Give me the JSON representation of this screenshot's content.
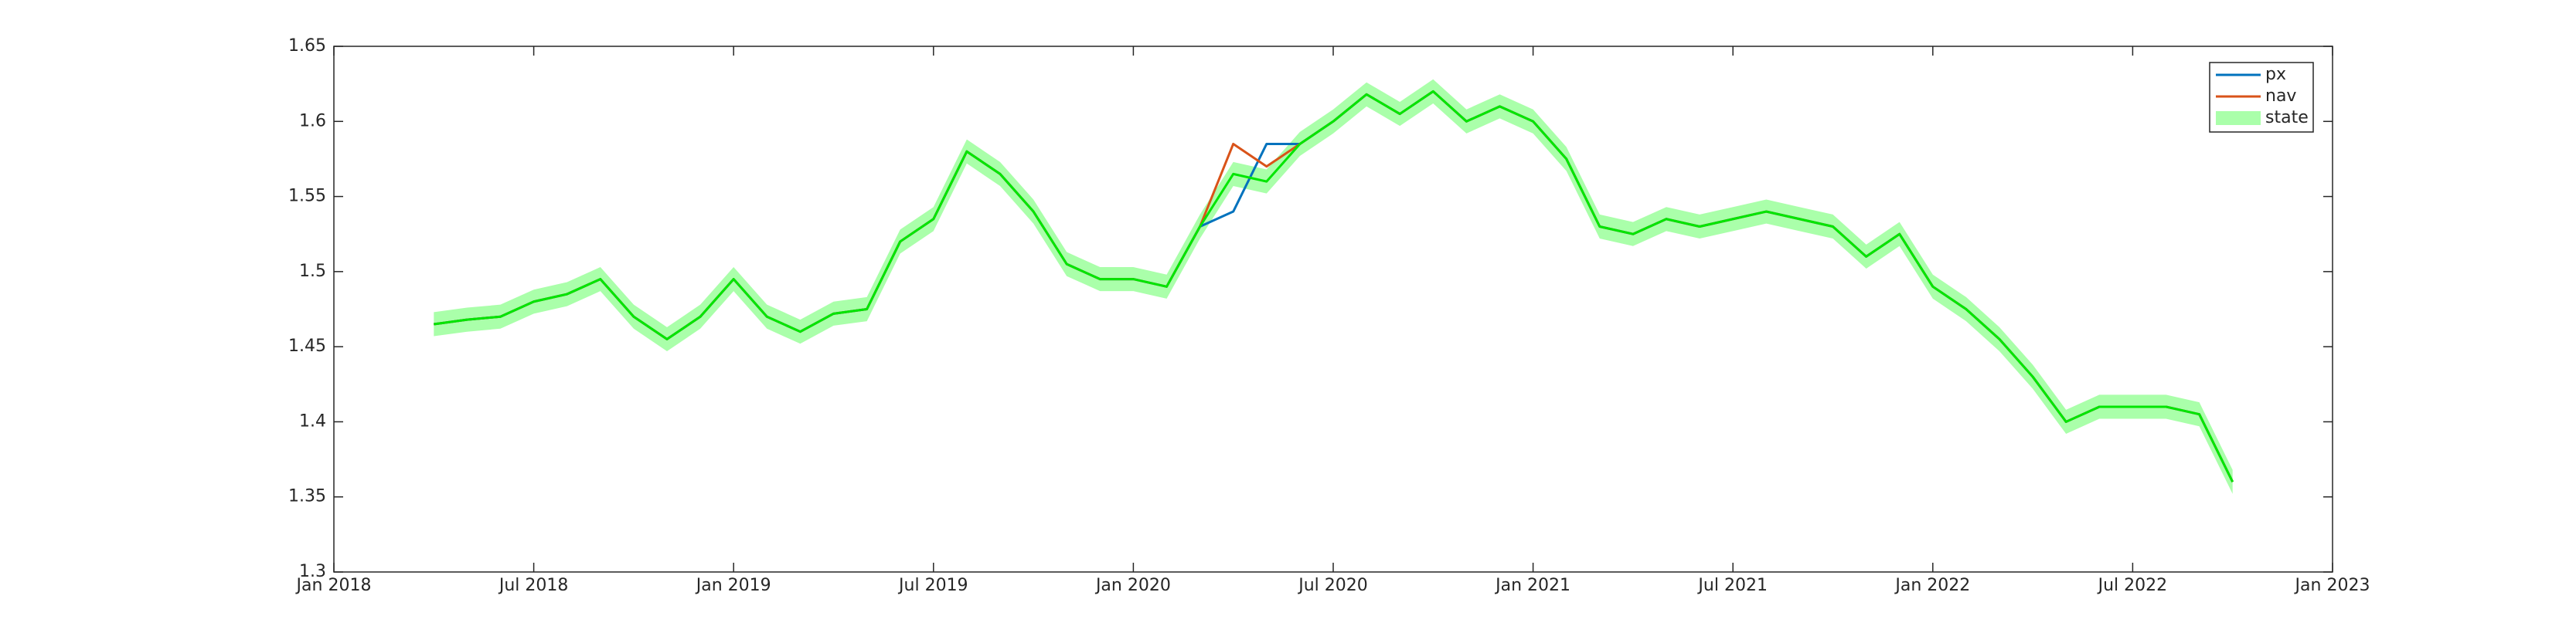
{
  "chart_data": {
    "type": "line",
    "x": [
      "2018-04",
      "2018-05",
      "2018-06",
      "2018-07",
      "2018-08",
      "2018-09",
      "2018-10",
      "2018-11",
      "2018-12",
      "2019-01",
      "2019-02",
      "2019-03",
      "2019-04",
      "2019-05",
      "2019-06",
      "2019-07",
      "2019-08",
      "2019-09",
      "2019-10",
      "2019-11",
      "2019-12",
      "2020-01",
      "2020-02",
      "2020-03",
      "2020-04",
      "2020-05",
      "2020-06",
      "2020-07",
      "2020-08",
      "2020-09",
      "2020-10",
      "2020-11",
      "2020-12",
      "2021-01",
      "2021-02",
      "2021-03",
      "2021-04",
      "2021-05",
      "2021-06",
      "2021-07",
      "2021-08",
      "2021-09",
      "2021-10",
      "2021-11",
      "2021-12",
      "2022-01",
      "2022-02",
      "2022-03",
      "2022-04",
      "2022-05",
      "2022-06",
      "2022-07",
      "2022-08",
      "2022-09",
      "2022-10"
    ],
    "series": [
      {
        "name": "px",
        "color": "#0072bd",
        "values": [
          1.465,
          1.468,
          1.47,
          1.48,
          1.485,
          1.495,
          1.47,
          1.455,
          1.47,
          1.495,
          1.47,
          1.46,
          1.472,
          1.475,
          1.52,
          1.535,
          1.58,
          1.565,
          1.54,
          1.505,
          1.495,
          1.495,
          1.49,
          1.53,
          1.54,
          1.585,
          1.585,
          1.6,
          1.618,
          1.605,
          1.62,
          1.6,
          1.61,
          1.6,
          1.575,
          1.53,
          1.525,
          1.535,
          1.53,
          1.535,
          1.54,
          1.535,
          1.53,
          1.51,
          1.525,
          1.49,
          1.475,
          1.455,
          1.43,
          1.4,
          1.41,
          1.41,
          1.41,
          1.405,
          1.36
        ]
      },
      {
        "name": "nav",
        "color": "#d95319",
        "values": [
          1.465,
          1.468,
          1.47,
          1.48,
          1.485,
          1.495,
          1.47,
          1.455,
          1.47,
          1.495,
          1.47,
          1.46,
          1.472,
          1.475,
          1.52,
          1.535,
          1.58,
          1.565,
          1.54,
          1.505,
          1.495,
          1.495,
          1.49,
          1.53,
          1.585,
          1.57,
          1.585,
          1.6,
          1.618,
          1.605,
          1.62,
          1.6,
          1.61,
          1.6,
          1.575,
          1.53,
          1.525,
          1.535,
          1.53,
          1.535,
          1.54,
          1.535,
          1.53,
          1.51,
          1.525,
          1.49,
          1.475,
          1.455,
          1.43,
          1.4,
          1.41,
          1.41,
          1.41,
          1.405,
          1.36
        ]
      },
      {
        "name": "state",
        "color": "#00e600",
        "band_color": "#aaffaa",
        "values": [
          1.465,
          1.468,
          1.47,
          1.48,
          1.485,
          1.495,
          1.47,
          1.455,
          1.47,
          1.495,
          1.47,
          1.46,
          1.472,
          1.475,
          1.52,
          1.535,
          1.58,
          1.565,
          1.54,
          1.505,
          1.495,
          1.495,
          1.49,
          1.53,
          1.565,
          1.56,
          1.585,
          1.6,
          1.618,
          1.605,
          1.62,
          1.6,
          1.61,
          1.6,
          1.575,
          1.53,
          1.525,
          1.535,
          1.53,
          1.535,
          1.54,
          1.535,
          1.53,
          1.51,
          1.525,
          1.49,
          1.475,
          1.455,
          1.43,
          1.4,
          1.41,
          1.41,
          1.41,
          1.405,
          1.36
        ],
        "lower": [
          1.457,
          1.46,
          1.462,
          1.472,
          1.477,
          1.487,
          1.462,
          1.447,
          1.462,
          1.487,
          1.462,
          1.452,
          1.464,
          1.467,
          1.512,
          1.527,
          1.572,
          1.557,
          1.532,
          1.497,
          1.487,
          1.487,
          1.482,
          1.522,
          1.557,
          1.552,
          1.577,
          1.592,
          1.61,
          1.597,
          1.612,
          1.592,
          1.602,
          1.592,
          1.567,
          1.522,
          1.517,
          1.527,
          1.522,
          1.527,
          1.532,
          1.527,
          1.522,
          1.502,
          1.517,
          1.482,
          1.467,
          1.447,
          1.422,
          1.392,
          1.402,
          1.402,
          1.402,
          1.397,
          1.352
        ],
        "upper": [
          1.473,
          1.476,
          1.478,
          1.488,
          1.493,
          1.503,
          1.478,
          1.463,
          1.478,
          1.503,
          1.478,
          1.468,
          1.48,
          1.483,
          1.528,
          1.543,
          1.588,
          1.573,
          1.548,
          1.513,
          1.503,
          1.503,
          1.498,
          1.538,
          1.573,
          1.568,
          1.593,
          1.608,
          1.626,
          1.613,
          1.628,
          1.608,
          1.618,
          1.608,
          1.583,
          1.538,
          1.533,
          1.543,
          1.538,
          1.543,
          1.548,
          1.543,
          1.538,
          1.518,
          1.533,
          1.498,
          1.483,
          1.463,
          1.438,
          1.408,
          1.418,
          1.418,
          1.418,
          1.413,
          1.368
        ]
      }
    ],
    "xlim": [
      "2018-01",
      "2023-01"
    ],
    "xticks": [
      {
        "value": "2018-01",
        "label": "Jan 2018"
      },
      {
        "value": "2018-07",
        "label": "Jul 2018"
      },
      {
        "value": "2019-01",
        "label": "Jan 2019"
      },
      {
        "value": "2019-07",
        "label": "Jul 2019"
      },
      {
        "value": "2020-01",
        "label": "Jan 2020"
      },
      {
        "value": "2020-07",
        "label": "Jul 2020"
      },
      {
        "value": "2021-01",
        "label": "Jan 2021"
      },
      {
        "value": "2021-07",
        "label": "Jul 2021"
      },
      {
        "value": "2022-01",
        "label": "Jan 2022"
      },
      {
        "value": "2022-07",
        "label": "Jul 2022"
      },
      {
        "value": "2023-01",
        "label": "Jan 2023"
      }
    ],
    "ylim": [
      1.3,
      1.65
    ],
    "yticks": [
      1.3,
      1.35,
      1.4,
      1.45,
      1.5,
      1.55,
      1.6,
      1.65
    ],
    "legend": "top-right",
    "grid": false
  }
}
